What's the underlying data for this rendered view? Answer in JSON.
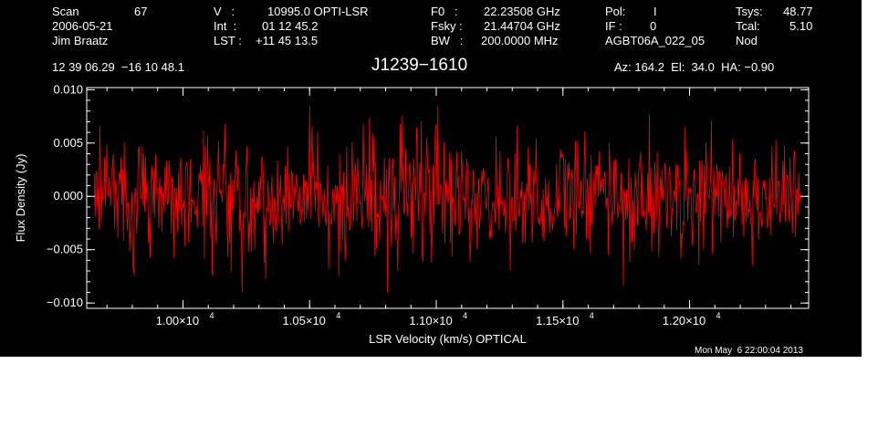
{
  "header": {
    "scan": {
      "label": "Scan",
      "value": "67"
    },
    "date": "2006-05-21",
    "observer": "Jim Braatz",
    "velocity": {
      "label": "V   :",
      "value": "10995.0 OPTI-LSR"
    },
    "int": {
      "label": "Int  :",
      "value": "01 12 45.2"
    },
    "lst": {
      "label": "LST :",
      "value": "+11 45 13.5"
    },
    "f0": {
      "label": "F0   :",
      "value": "22.23508 GHz"
    },
    "fsky": {
      "label": "Fsky :",
      "value": "21.44704 GHz"
    },
    "bw": {
      "label": "BW   :",
      "value": "200.0000 MHz"
    },
    "pol": {
      "label": "Pol:",
      "value": "I"
    },
    "if": {
      "label": "IF :",
      "value": "0"
    },
    "project": "AGBT06A_022_05",
    "tsys": {
      "label": "Tsys:",
      "value": "48.77"
    },
    "tcal": {
      "label": "Tcal:",
      "value": "5.10"
    },
    "mode": "Nod",
    "coords": "12 39 06.29  −16 10 48.1",
    "source": "J1239−1610",
    "az_el_ha": "Az: 164.2  El:  34.0  HA: −0.90",
    "timestamp": "Mon May  6 22:00:04 2013"
  },
  "chart_data": {
    "type": "line",
    "title": "J1239−1610",
    "xlabel": "LSR Velocity (km/s) OPTICAL",
    "ylabel": "Flux Density (Jy)",
    "xlim": [
      9620,
      12470
    ],
    "ylim": [
      -0.0105,
      0.0102
    ],
    "x_ticks": [
      {
        "value": 10000,
        "label": "1.00×10",
        "exp": "4"
      },
      {
        "value": 10500,
        "label": "1.05×10",
        "exp": "4"
      },
      {
        "value": 11000,
        "label": "1.10×10",
        "exp": "4"
      },
      {
        "value": 11500,
        "label": "1.15×10",
        "exp": "4"
      },
      {
        "value": 12000,
        "label": "1.20×10",
        "exp": "4"
      }
    ],
    "y_ticks": [
      {
        "value": 0.01,
        "label": "0.010"
      },
      {
        "value": 0.005,
        "label": "0.005"
      },
      {
        "value": 0.0,
        "label": "0.000"
      },
      {
        "value": -0.005,
        "label": "−0.005"
      },
      {
        "value": -0.01,
        "label": "−0.010"
      }
    ],
    "series": [
      {
        "color": "#ff0000",
        "x_start": 9650,
        "x_end": 12440,
        "n_points": 900,
        "mean": 0.0,
        "rms": 0.0028,
        "min": -0.009,
        "max": 0.0085
      }
    ],
    "grid": false
  }
}
